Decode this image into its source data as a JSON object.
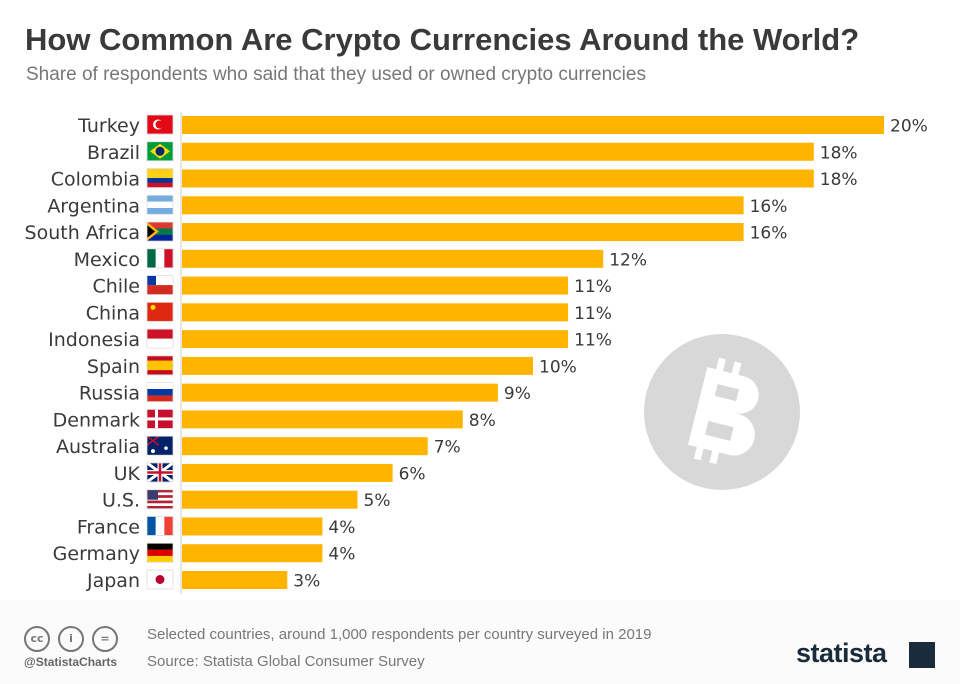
{
  "header": {
    "title": "How Common Are Crypto Currencies Around the World?",
    "subtitle": "Share of respondents who said that they used or owned crypto currencies"
  },
  "chart_data": {
    "type": "bar",
    "orientation": "horizontal",
    "title": "How Common Are Crypto Currencies Around the World?",
    "subtitle": "Share of respondents who said that they used or owned crypto currencies",
    "categories": [
      "Turkey",
      "Brazil",
      "Colombia",
      "Argentina",
      "South Africa",
      "Mexico",
      "Chile",
      "China",
      "Indonesia",
      "Spain",
      "Russia",
      "Denmark",
      "Australia",
      "UK",
      "U.S.",
      "France",
      "Germany",
      "Japan"
    ],
    "values": [
      20,
      18,
      18,
      16,
      16,
      12,
      11,
      11,
      11,
      10,
      9,
      8,
      7,
      6,
      5,
      4,
      4,
      3
    ],
    "value_labels": [
      "20%",
      "18%",
      "18%",
      "16%",
      "16%",
      "12%",
      "11%",
      "11%",
      "11%",
      "10%",
      "9%",
      "8%",
      "7%",
      "6%",
      "5%",
      "4%",
      "4%",
      "3%"
    ],
    "unit": "%",
    "xlim": [
      0,
      20
    ],
    "grid": false,
    "bar_color": "#ffb400",
    "flags": [
      "turkey-flag",
      "brazil-flag",
      "colombia-flag",
      "argentina-flag",
      "south-africa-flag",
      "mexico-flag",
      "chile-flag",
      "china-flag",
      "indonesia-flag",
      "spain-flag",
      "russia-flag",
      "denmark-flag",
      "australia-flag",
      "uk-flag",
      "us-flag",
      "france-flag",
      "germany-flag",
      "japan-flag"
    ],
    "decoration": "bitcoin-icon"
  },
  "footer": {
    "note": "Selected countries, around 1,000 respondents per country surveyed in 2019",
    "source": "Source: Statista Global Consumer Survey",
    "handle": "@StatistaCharts",
    "logo": "statista",
    "cc_icons": [
      "cc",
      "i",
      "="
    ]
  }
}
